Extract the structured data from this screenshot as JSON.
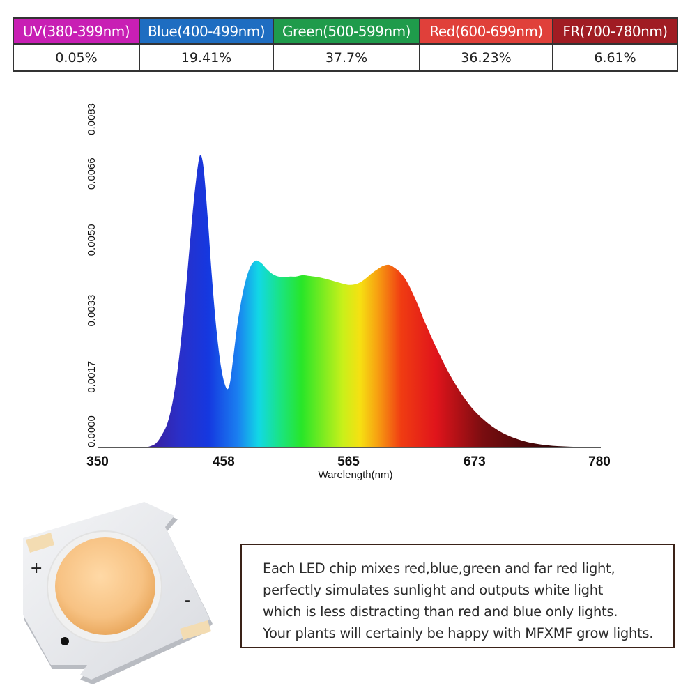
{
  "table": {
    "headers": [
      {
        "label": "UV(380-399nm)",
        "color": "#c81fb4"
      },
      {
        "label": "Blue(400-499nm)",
        "color": "#1e6dc1"
      },
      {
        "label": "Green(500-599nm)",
        "color": "#1f9b4b"
      },
      {
        "label": "Red(600-699nm)",
        "color": "#e0403a"
      },
      {
        "label": "FR(700-780nm)",
        "color": "#a01c23"
      }
    ],
    "values": [
      "0.05%",
      "19.41%",
      "37.7%",
      "36.23%",
      "6.61%"
    ]
  },
  "chart_data": {
    "type": "area",
    "title": "",
    "xlabel": "Warelength(nm)",
    "ylabel": "",
    "xlim": [
      350,
      780
    ],
    "ylim": [
      0,
      0.0083
    ],
    "x_ticks": [
      "350",
      "458",
      "565",
      "673",
      "780"
    ],
    "y_ticks": [
      "0.0000",
      "0.0017",
      "0.0033",
      "0.0050",
      "0.0066",
      "0.0083"
    ],
    "series": [
      {
        "x": [
          390,
          395,
          400,
          405,
          410,
          415,
          420,
          425,
          430,
          433,
          436,
          438,
          440,
          442,
          445,
          448,
          452,
          456,
          460,
          463,
          466,
          470,
          475,
          480,
          485,
          490,
          495,
          500,
          505,
          510,
          515,
          520,
          525,
          530,
          540,
          550,
          560,
          565,
          570,
          575,
          580,
          585,
          590,
          595,
          600,
          605,
          610,
          615,
          620,
          625,
          630,
          640,
          650,
          660,
          670,
          680,
          690,
          700,
          710,
          720,
          730,
          740,
          750,
          760,
          770,
          780
        ],
        "y": [
          0.0,
          3e-05,
          0.0001,
          0.0003,
          0.0006,
          0.0012,
          0.0022,
          0.0036,
          0.0052,
          0.0061,
          0.0068,
          0.00705,
          0.0069,
          0.0064,
          0.0053,
          0.0041,
          0.0028,
          0.0019,
          0.00145,
          0.0015,
          0.0021,
          0.003,
          0.0038,
          0.0043,
          0.0045,
          0.00445,
          0.0043,
          0.00418,
          0.00412,
          0.0041,
          0.00412,
          0.00412,
          0.00415,
          0.00414,
          0.0041,
          0.00403,
          0.00395,
          0.00392,
          0.00393,
          0.00398,
          0.00408,
          0.0042,
          0.0043,
          0.00438,
          0.0044,
          0.00432,
          0.0042,
          0.004,
          0.00372,
          0.0034,
          0.00305,
          0.00242,
          0.00185,
          0.00137,
          0.00098,
          0.00069,
          0.00047,
          0.00031,
          0.0002,
          0.00012,
          7e-05,
          4e-05,
          2.5e-05,
          1.5e-05,
          8e-06,
          0.0
        ]
      }
    ],
    "fill": "visible-spectrum gradient"
  },
  "chip": {
    "plus_label": "+",
    "minus_label": "-"
  },
  "note": {
    "lines": [
      "Each LED chip mixes red,blue,green and far red light,",
      "perfectly simulates sunlight and outputs white light",
      "which is less distracting than red and blue only lights.",
      "Your plants will certainly be happy with MFXMF grow lights."
    ]
  }
}
